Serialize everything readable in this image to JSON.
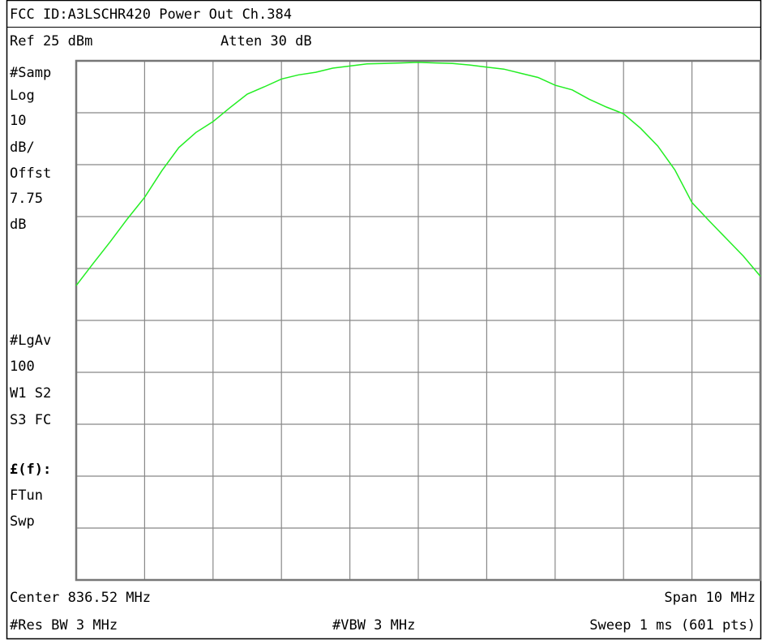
{
  "chart_data": {
    "type": "line",
    "title": "FCC ID:A3LSCHR420 Power Out Ch.384",
    "ref_level": "Ref 25 dBm",
    "attenuation": "Atten 30 dB",
    "side_labels_top": [
      "#Samp",
      "Log",
      "10",
      "dB/",
      "Offst",
      "7.75",
      "dB"
    ],
    "side_labels_bottom": [
      "#LgAv",
      "100",
      "W1  S2",
      "S3  FC",
      "£(f):",
      "FTun",
      "Swp"
    ],
    "center": "Center 836.52 MHz",
    "span": "Span 10 MHz",
    "res_bw": "#Res BW 3 MHz",
    "vbw": "#VBW 3 MHz",
    "sweep": "Sweep 1 ms (601 pts)",
    "x": [
      831.52,
      831.77,
      832.02,
      832.27,
      832.52,
      832.77,
      833.02,
      833.27,
      833.52,
      833.77,
      834.02,
      834.27,
      834.52,
      834.77,
      835.02,
      835.27,
      835.52,
      835.77,
      836.02,
      836.27,
      836.52,
      836.77,
      837.02,
      837.27,
      837.52,
      837.77,
      838.02,
      838.27,
      838.52,
      838.77,
      839.02,
      839.27,
      839.52,
      839.77,
      840.02,
      840.27,
      840.52,
      840.77,
      841.02,
      841.27,
      841.52
    ],
    "series": [
      {
        "color": "#22ee22",
        "values": [
          -18.3,
          -14.0,
          -9.8,
          -5.4,
          -1.3,
          3.8,
          8.3,
          11.2,
          13.3,
          16.0,
          18.6,
          20.0,
          21.5,
          22.3,
          22.8,
          23.6,
          24.0,
          24.4,
          24.5,
          24.6,
          24.7,
          24.6,
          24.5,
          24.2,
          23.8,
          23.4,
          22.6,
          21.8,
          20.3,
          19.4,
          17.6,
          16.1,
          14.8,
          12.0,
          8.6,
          4.0,
          -2.3,
          -5.8,
          -9.2,
          -12.6,
          -16.5
        ]
      }
    ],
    "xlim": [
      831.52,
      841.52
    ],
    "xticks": [
      831.52,
      832.52,
      833.52,
      834.52,
      835.52,
      836.52,
      837.52,
      838.52,
      839.52,
      840.52,
      841.52
    ],
    "ylim": [
      -75,
      25
    ],
    "yticks": [
      -75,
      -65,
      -55,
      -45,
      -35,
      -25,
      -15,
      -5,
      5,
      15,
      25
    ],
    "grid": true
  }
}
